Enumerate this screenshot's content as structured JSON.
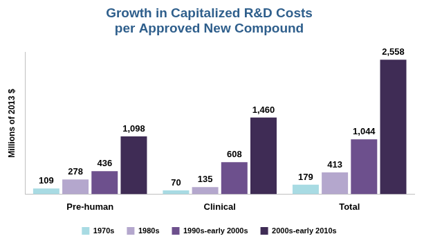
{
  "chart_data": {
    "type": "bar",
    "title": [
      "Growth in Capitalized R&D Costs",
      "per Approved New Compound"
    ],
    "y_label": "Millions of 2013 $",
    "categories": [
      "Pre-human",
      "Clinical",
      "Total"
    ],
    "series": [
      {
        "name": "1970s",
        "color": "#a8dbe3",
        "values": [
          109,
          70,
          179
        ],
        "value_labels": [
          "109",
          "70",
          "179"
        ]
      },
      {
        "name": "1980s",
        "color": "#b4a7cd",
        "values": [
          278,
          135,
          413
        ],
        "value_labels": [
          "278",
          "135",
          "413"
        ]
      },
      {
        "name": "1990s-early 2000s",
        "color": "#6d508d",
        "values": [
          436,
          608,
          1044
        ],
        "value_labels": [
          "436",
          "608",
          "1,044"
        ]
      },
      {
        "name": "2000s-early 2010s",
        "color": "#3f2c55",
        "values": [
          1098,
          1460,
          2558
        ],
        "value_labels": [
          "1,098",
          "1,460",
          "2,558"
        ]
      }
    ],
    "ylim": [
      0,
      2700
    ],
    "grid": false,
    "legend": "bottom",
    "data_labels": true,
    "tick_labels": "x"
  }
}
